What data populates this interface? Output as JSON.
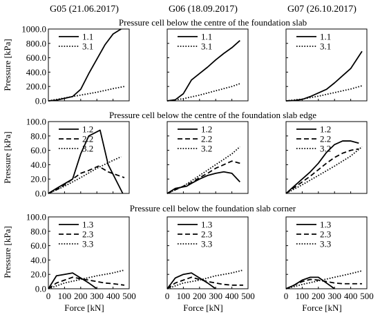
{
  "column_titles": [
    "G05 (21.06.2017)",
    "G06 (18.09.2017)",
    "G07 (26.10.2017)"
  ],
  "row_titles": [
    "Pressure cell below the centre of the foundation slab",
    "Pressure cell below the centre of the foundation slab edge",
    "Pressure cell below the foundation slab corner"
  ],
  "ylabel": "Pressure [kPa]",
  "xlabel": "Force [kN]",
  "chart_data": [
    {
      "type": "line",
      "panel": "row1-G05",
      "xlim": [
        0,
        500
      ],
      "ylim": [
        0,
        1000
      ],
      "yticks": [
        "0.0",
        "200.0",
        "400.0",
        "600.0",
        "800.0",
        "1000.0"
      ],
      "xticks": [],
      "series": [
        {
          "name": "1.1",
          "style": "solid",
          "x": [
            0,
            50,
            150,
            200,
            250,
            300,
            350,
            400,
            450
          ],
          "y": [
            0,
            10,
            60,
            160,
            380,
            580,
            780,
            930,
            1000
          ]
        },
        {
          "name": "3.1",
          "style": "dotted",
          "x": [
            0,
            100,
            200,
            300,
            400,
            470
          ],
          "y": [
            0,
            40,
            80,
            120,
            170,
            200
          ]
        }
      ]
    },
    {
      "type": "line",
      "panel": "row1-G06",
      "xlim": [
        0,
        500
      ],
      "ylim": [
        0,
        1000
      ],
      "yticks": [],
      "xticks": [],
      "series": [
        {
          "name": "1.1",
          "style": "solid",
          "x": [
            0,
            50,
            100,
            150,
            200,
            250,
            300,
            350,
            400,
            450
          ],
          "y": [
            0,
            15,
            100,
            290,
            380,
            470,
            570,
            660,
            740,
            840
          ]
        },
        {
          "name": "3.1",
          "style": "dotted",
          "x": [
            0,
            100,
            200,
            300,
            400,
            450
          ],
          "y": [
            0,
            30,
            80,
            140,
            200,
            240
          ]
        }
      ]
    },
    {
      "type": "line",
      "panel": "row1-G07",
      "xlim": [
        0,
        500
      ],
      "ylim": [
        0,
        1000
      ],
      "yticks": [],
      "xticks": [],
      "series": [
        {
          "name": "1.1",
          "style": "solid",
          "x": [
            0,
            50,
            100,
            150,
            200,
            250,
            300,
            350,
            400,
            470
          ],
          "y": [
            0,
            5,
            20,
            60,
            110,
            160,
            250,
            350,
            450,
            690
          ]
        },
        {
          "name": "3.1",
          "style": "dotted",
          "x": [
            0,
            100,
            200,
            300,
            400,
            470
          ],
          "y": [
            0,
            25,
            65,
            115,
            165,
            210
          ]
        }
      ]
    },
    {
      "type": "line",
      "panel": "row2-G05",
      "xlim": [
        0,
        500
      ],
      "ylim": [
        0,
        100
      ],
      "yticks": [
        "0.0",
        "20.0",
        "40.0",
        "60.0",
        "80.0",
        "100.0"
      ],
      "xticks": [],
      "series": [
        {
          "name": "1.2",
          "style": "solid",
          "x": [
            0,
            50,
            150,
            200,
            250,
            320,
            370,
            460
          ],
          "y": [
            0,
            7,
            20,
            55,
            80,
            88,
            40,
            0
          ]
        },
        {
          "name": "2.2",
          "style": "dashed",
          "x": [
            0,
            50,
            100,
            150,
            200,
            250,
            310,
            370,
            470
          ],
          "y": [
            0,
            5,
            12,
            20,
            28,
            32,
            38,
            30,
            22
          ]
        },
        {
          "name": "3.2",
          "style": "dotted",
          "x": [
            0,
            100,
            200,
            300,
            400,
            450
          ],
          "y": [
            0,
            10,
            22,
            35,
            46,
            51
          ]
        }
      ]
    },
    {
      "type": "line",
      "panel": "row2-G06",
      "xlim": [
        0,
        500
      ],
      "ylim": [
        0,
        100
      ],
      "yticks": [],
      "xticks": [],
      "series": [
        {
          "name": "1.2",
          "style": "solid",
          "x": [
            0,
            50,
            120,
            150,
            200,
            250,
            300,
            350,
            400,
            450
          ],
          "y": [
            0,
            7,
            10,
            14,
            20,
            25,
            28,
            30,
            28,
            16
          ]
        },
        {
          "name": "2.2",
          "style": "dashed",
          "x": [
            0,
            50,
            100,
            150,
            200,
            250,
            300,
            350,
            400,
            450
          ],
          "y": [
            0,
            5,
            10,
            15,
            22,
            28,
            35,
            40,
            45,
            42
          ]
        },
        {
          "name": "3.2",
          "style": "dotted",
          "x": [
            0,
            100,
            200,
            300,
            400,
            450
          ],
          "y": [
            0,
            10,
            25,
            40,
            55,
            65
          ]
        }
      ]
    },
    {
      "type": "line",
      "panel": "row2-G07",
      "xlim": [
        0,
        500
      ],
      "ylim": [
        0,
        100
      ],
      "yticks": [],
      "xticks": [],
      "series": [
        {
          "name": "1.2",
          "style": "solid",
          "x": [
            0,
            50,
            100,
            150,
            200,
            250,
            300,
            350,
            400,
            450
          ],
          "y": [
            0,
            10,
            20,
            30,
            42,
            57,
            68,
            73,
            73,
            70
          ]
        },
        {
          "name": "2.2",
          "style": "dashed",
          "x": [
            0,
            50,
            100,
            150,
            200,
            250,
            300,
            350,
            400,
            450
          ],
          "y": [
            0,
            8,
            16,
            24,
            33,
            42,
            50,
            56,
            60,
            62
          ]
        },
        {
          "name": "3.2",
          "style": "dotted",
          "x": [
            0,
            100,
            200,
            300,
            400,
            470
          ],
          "y": [
            0,
            12,
            25,
            38,
            52,
            65
          ]
        }
      ]
    },
    {
      "type": "line",
      "panel": "row3-G05",
      "xlim": [
        0,
        500
      ],
      "ylim": [
        0,
        100
      ],
      "yticks": [
        "0.0",
        "20.0",
        "40.0",
        "60.0",
        "80.0",
        "100.0"
      ],
      "xticks": [
        "0",
        "100",
        "200",
        "300",
        "400",
        "500"
      ],
      "series": [
        {
          "name": "1.3",
          "style": "solid",
          "x": [
            0,
            50,
            100,
            150,
            200,
            250,
            300
          ],
          "y": [
            0,
            18,
            20,
            22,
            15,
            8,
            0
          ]
        },
        {
          "name": "2.3",
          "style": "dashed",
          "x": [
            0,
            50,
            100,
            150,
            200,
            250,
            300,
            350,
            400,
            470
          ],
          "y": [
            0,
            8,
            12,
            16,
            14,
            12,
            10,
            8,
            7,
            5
          ]
        },
        {
          "name": "3.3",
          "style": "dotted",
          "x": [
            0,
            100,
            200,
            300,
            400,
            470
          ],
          "y": [
            0,
            8,
            13,
            18,
            22,
            26
          ]
        }
      ]
    },
    {
      "type": "line",
      "panel": "row3-G06",
      "xlim": [
        0,
        500
      ],
      "ylim": [
        0,
        100
      ],
      "yticks": [],
      "xticks": [
        "0",
        "100",
        "200",
        "300",
        "400",
        "500"
      ],
      "series": [
        {
          "name": "1.3",
          "style": "solid",
          "x": [
            0,
            50,
            100,
            150,
            200,
            250,
            300
          ],
          "y": [
            0,
            15,
            20,
            22,
            15,
            8,
            0
          ]
        },
        {
          "name": "2.3",
          "style": "dashed",
          "x": [
            0,
            50,
            100,
            150,
            200,
            250,
            300,
            350,
            400,
            470
          ],
          "y": [
            0,
            8,
            12,
            16,
            13,
            10,
            8,
            6,
            5,
            5
          ]
        },
        {
          "name": "3.3",
          "style": "dotted",
          "x": [
            0,
            100,
            200,
            300,
            400,
            470
          ],
          "y": [
            0,
            8,
            12,
            18,
            22,
            26
          ]
        }
      ]
    },
    {
      "type": "line",
      "panel": "row3-G07",
      "xlim": [
        0,
        500
      ],
      "ylim": [
        0,
        100
      ],
      "yticks": [],
      "xticks": [
        "0",
        "100",
        "200",
        "300",
        "400",
        "500"
      ],
      "series": [
        {
          "name": "1.3",
          "style": "solid",
          "x": [
            0,
            50,
            100,
            150,
            200,
            250,
            300
          ],
          "y": [
            0,
            5,
            12,
            16,
            16,
            8,
            0
          ]
        },
        {
          "name": "2.3",
          "style": "dashed",
          "x": [
            0,
            50,
            100,
            150,
            200,
            250,
            300,
            350,
            400,
            470
          ],
          "y": [
            0,
            5,
            10,
            13,
            12,
            10,
            8,
            7,
            7,
            7
          ]
        },
        {
          "name": "3.3",
          "style": "dotted",
          "x": [
            0,
            100,
            200,
            300,
            400,
            470
          ],
          "y": [
            0,
            6,
            11,
            16,
            21,
            25
          ]
        }
      ]
    }
  ]
}
